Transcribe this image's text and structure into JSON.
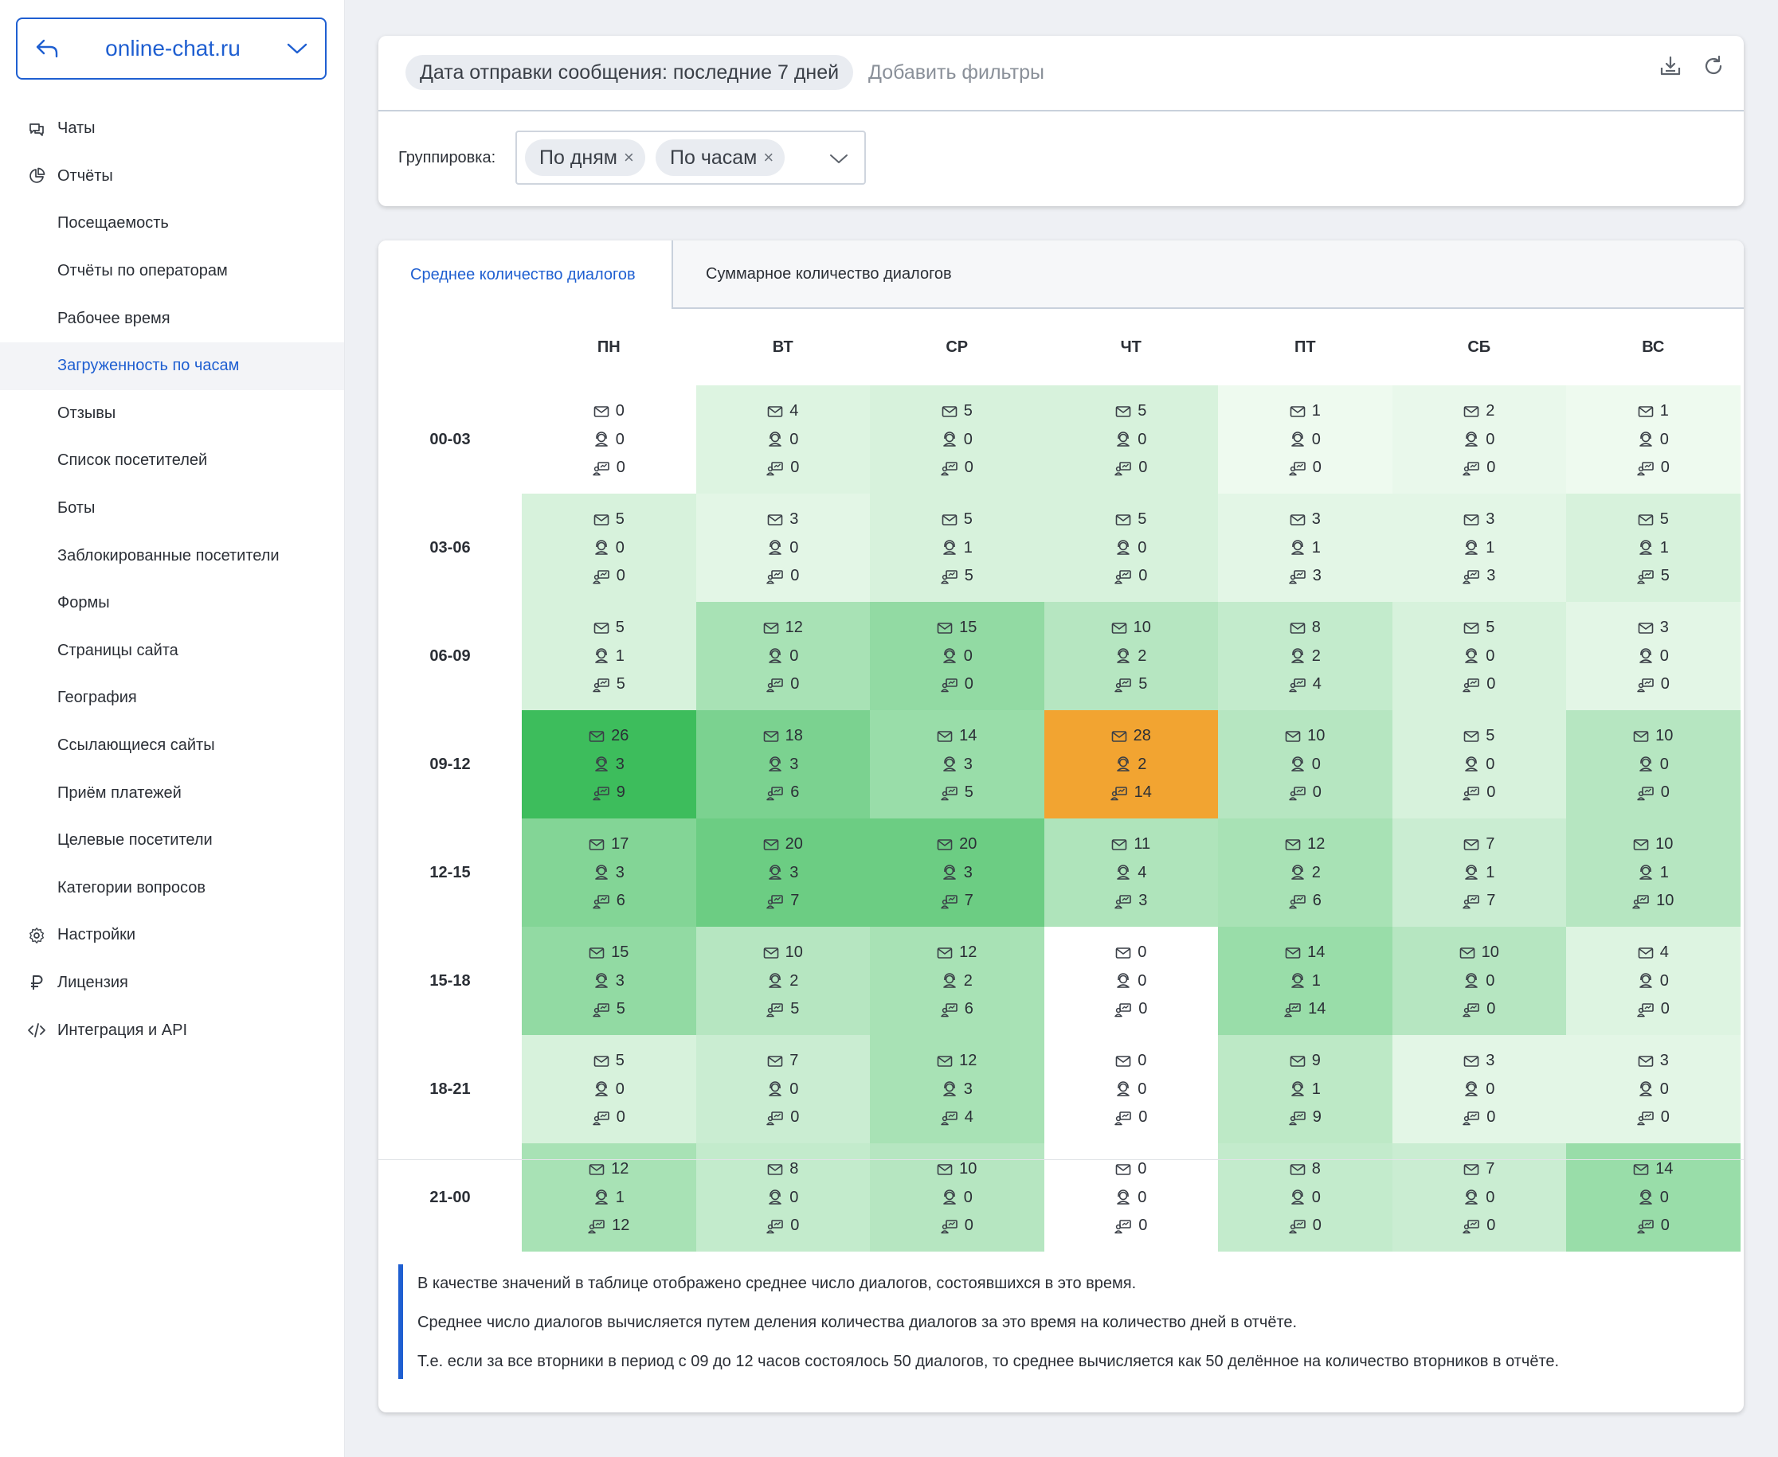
{
  "sidebar": {
    "site_name": "online-chat.ru",
    "items": [
      {
        "label": "Чаты",
        "level": "top",
        "icon": "chat-icon"
      },
      {
        "label": "Отчёты",
        "level": "top",
        "icon": "pie-chart-icon"
      },
      {
        "label": "Посещаемость",
        "level": "sub"
      },
      {
        "label": "Отчёты по операторам",
        "level": "sub"
      },
      {
        "label": "Рабочее время",
        "level": "sub"
      },
      {
        "label": "Загруженность по часам",
        "level": "sub",
        "active": true
      },
      {
        "label": "Отзывы",
        "level": "sub"
      },
      {
        "label": "Список посетителей",
        "level": "sub"
      },
      {
        "label": "Боты",
        "level": "sub"
      },
      {
        "label": "Заблокированные посетители",
        "level": "sub"
      },
      {
        "label": "Формы",
        "level": "sub"
      },
      {
        "label": "Страницы сайта",
        "level": "sub"
      },
      {
        "label": "География",
        "level": "sub"
      },
      {
        "label": "Ссылающиеся сайты",
        "level": "sub"
      },
      {
        "label": "Приём платежей",
        "level": "sub"
      },
      {
        "label": "Целевые посетители",
        "level": "sub"
      },
      {
        "label": "Категории вопросов",
        "level": "sub"
      },
      {
        "label": "Настройки",
        "level": "top",
        "icon": "gear-icon"
      },
      {
        "label": "Лицензия",
        "level": "top",
        "icon": "ruble-icon"
      },
      {
        "label": "Интеграция и API",
        "level": "top",
        "icon": "code-icon"
      }
    ]
  },
  "filters": {
    "active_filter": "Дата отправки сообщения: последние 7 дней",
    "add_filters": "Добавить фильтры",
    "grouping_label": "Группировка:",
    "grouping_tags": [
      "По дням",
      "По часам"
    ]
  },
  "tabs": [
    {
      "label": "Среднее количество диалогов",
      "active": true
    },
    {
      "label": "Суммарное количество диалогов",
      "active": false
    }
  ],
  "heatmap": {
    "days": [
      "ПН",
      "ВТ",
      "СР",
      "ЧТ",
      "ПТ",
      "СБ",
      "ВС"
    ],
    "hours": [
      "00-03",
      "03-06",
      "06-09",
      "09-12",
      "12-15",
      "15-18",
      "18-21",
      "21-00"
    ],
    "metric_icons": [
      "envelope-icon",
      "operator-icon",
      "bot-icon"
    ],
    "max_value": 28,
    "highlight_color": "#f2a431",
    "cells": [
      [
        [
          0,
          0,
          0
        ],
        [
          4,
          0,
          0
        ],
        [
          5,
          0,
          0
        ],
        [
          5,
          0,
          0
        ],
        [
          1,
          0,
          0
        ],
        [
          2,
          0,
          0
        ],
        [
          1,
          0,
          0
        ]
      ],
      [
        [
          5,
          0,
          0
        ],
        [
          3,
          0,
          0
        ],
        [
          5,
          1,
          5
        ],
        [
          5,
          0,
          0
        ],
        [
          3,
          1,
          3
        ],
        [
          3,
          1,
          3
        ],
        [
          5,
          1,
          5
        ]
      ],
      [
        [
          5,
          1,
          5
        ],
        [
          12,
          0,
          0
        ],
        [
          15,
          0,
          0
        ],
        [
          10,
          2,
          5
        ],
        [
          8,
          2,
          4
        ],
        [
          5,
          0,
          0
        ],
        [
          3,
          0,
          0
        ]
      ],
      [
        [
          26,
          3,
          9
        ],
        [
          18,
          3,
          6
        ],
        [
          14,
          3,
          5
        ],
        [
          28,
          2,
          14
        ],
        [
          10,
          0,
          0
        ],
        [
          5,
          0,
          0
        ],
        [
          10,
          0,
          0
        ]
      ],
      [
        [
          17,
          3,
          6
        ],
        [
          20,
          3,
          7
        ],
        [
          20,
          3,
          7
        ],
        [
          11,
          4,
          3
        ],
        [
          12,
          2,
          6
        ],
        [
          7,
          1,
          7
        ],
        [
          10,
          1,
          10
        ]
      ],
      [
        [
          15,
          3,
          5
        ],
        [
          10,
          2,
          5
        ],
        [
          12,
          2,
          6
        ],
        [
          0,
          0,
          0
        ],
        [
          14,
          1,
          14
        ],
        [
          10,
          0,
          0
        ],
        [
          4,
          0,
          0
        ]
      ],
      [
        [
          5,
          0,
          0
        ],
        [
          7,
          0,
          0
        ],
        [
          12,
          3,
          4
        ],
        [
          0,
          0,
          0
        ],
        [
          9,
          1,
          9
        ],
        [
          3,
          0,
          0
        ],
        [
          3,
          0,
          0
        ]
      ],
      [
        [
          12,
          1,
          12
        ],
        [
          8,
          0,
          0
        ],
        [
          10,
          0,
          0
        ],
        [
          0,
          0,
          0
        ],
        [
          8,
          0,
          0
        ],
        [
          7,
          0,
          0
        ],
        [
          14,
          0,
          0
        ]
      ]
    ]
  },
  "notes": [
    "В качестве значений в таблице отображено среднее число диалогов, состоявшихся в это время.",
    "Среднее число диалогов вычисляется путем деления количества диалогов за это время на количество дней в отчёте.",
    "Т.е. если за все вторники в период с 09 до 12 часов состоялось 50 диалогов, то среднее вычисляется как 50 делённое на количество вторников в отчёте."
  ]
}
